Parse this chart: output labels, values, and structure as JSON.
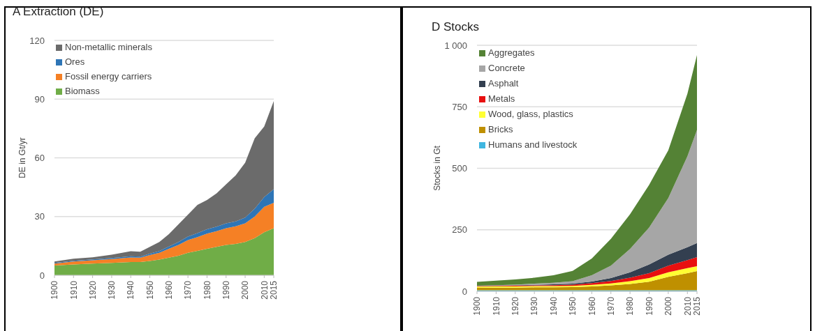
{
  "chart_data": [
    {
      "type": "area",
      "title": "A Extraction (DE)",
      "ylabel": "DE in Gt/yr",
      "stacked": true,
      "grid": "y",
      "legend": "top left",
      "xlim": [
        1900,
        2015
      ],
      "xticks": [
        1900,
        1910,
        1920,
        1930,
        1940,
        1950,
        1960,
        1970,
        1980,
        1990,
        2000,
        2010,
        2015
      ],
      "ylim": [
        0,
        120
      ],
      "yticks": [
        0,
        30,
        60,
        90,
        120
      ],
      "x": [
        1900,
        1910,
        1920,
        1930,
        1940,
        1945,
        1950,
        1955,
        1960,
        1965,
        1970,
        1975,
        1980,
        1985,
        1990,
        1995,
        2000,
        2005,
        2010,
        2015
      ],
      "series": [
        {
          "name": "Biomass",
          "color": "#70ad47",
          "values": [
            5,
            5.5,
            6,
            6.3,
            6.8,
            6.8,
            7.3,
            8,
            9,
            10,
            11.5,
            12.5,
            13.5,
            14.5,
            15.5,
            16,
            17,
            19,
            22,
            24
          ]
        },
        {
          "name": "Fossil energy carriers",
          "color": "#f58025",
          "values": [
            1,
            1.5,
            1.7,
            2,
            2.3,
            2.2,
            3,
            3.5,
            4.5,
            5.5,
            6.5,
            7,
            7.8,
            8,
            8.5,
            9,
            9.5,
            11,
            13,
            13
          ]
        },
        {
          "name": "Ores",
          "color": "#2e75b6",
          "values": [
            0.3,
            0.4,
            0.4,
            0.5,
            0.6,
            0.5,
            0.7,
            0.9,
            1.2,
            1.5,
            1.8,
            2,
            2.2,
            2.3,
            2.5,
            2.5,
            3,
            4,
            5,
            7
          ]
        },
        {
          "name": "Non-metallic minerals",
          "color": "#6b6b6b",
          "values": [
            0.7,
            1.1,
            1.1,
            1.7,
            2.6,
            2.5,
            3.5,
            4.6,
            6.3,
            9,
            11.2,
            14.5,
            15,
            17,
            20,
            23.5,
            28,
            36,
            36,
            45
          ]
        }
      ]
    },
    {
      "type": "area",
      "title": "D Stocks",
      "ylabel": "Stocks in Gt",
      "stacked": true,
      "grid": "y",
      "legend": "top left",
      "xlim": [
        1900,
        2015
      ],
      "xticks": [
        1900,
        1910,
        1920,
        1930,
        1940,
        1950,
        1960,
        1970,
        1980,
        1990,
        2000,
        2010,
        2015
      ],
      "ylim": [
        0,
        1000
      ],
      "yticks": [
        0,
        250,
        500,
        750,
        {
          "value": 1000,
          "label": "1 000"
        }
      ],
      "x": [
        1900,
        1910,
        1920,
        1930,
        1940,
        1950,
        1960,
        1970,
        1980,
        1990,
        2000,
        2010,
        2015
      ],
      "series": [
        {
          "name": "Humans and livestock",
          "color": "#3fb6e0",
          "values": [
            4,
            4,
            4,
            4,
            4,
            4,
            4,
            4,
            4,
            4,
            4,
            4,
            4
          ]
        },
        {
          "name": "Bricks",
          "color": "#bf9000",
          "values": [
            10,
            11,
            11,
            12,
            12,
            13,
            16,
            20,
            26,
            35,
            55,
            70,
            78
          ]
        },
        {
          "name": "Wood, glass, plastics",
          "color": "#ffff33",
          "values": [
            5,
            5,
            5,
            5,
            5,
            5,
            6,
            8,
            11,
            15,
            18,
            20,
            20
          ]
        },
        {
          "name": "Metals",
          "color": "#e81010",
          "values": [
            2,
            2,
            3,
            3,
            4,
            5,
            7,
            10,
            14,
            20,
            27,
            33,
            37
          ]
        },
        {
          "name": "Asphalt",
          "color": "#333f50",
          "values": [
            1,
            1,
            1,
            2,
            3,
            4,
            7,
            12,
            22,
            35,
            45,
            52,
            57
          ]
        },
        {
          "name": "Concrete",
          "color": "#a6a6a6",
          "values": [
            1,
            2,
            3,
            5,
            7,
            10,
            25,
            50,
            95,
            150,
            230,
            370,
            460
          ]
        },
        {
          "name": "Aggregates",
          "color": "#548235",
          "values": [
            15,
            18,
            21,
            24,
            30,
            42,
            68,
            109,
            141,
            174,
            194,
            254,
            304
          ]
        }
      ]
    }
  ]
}
